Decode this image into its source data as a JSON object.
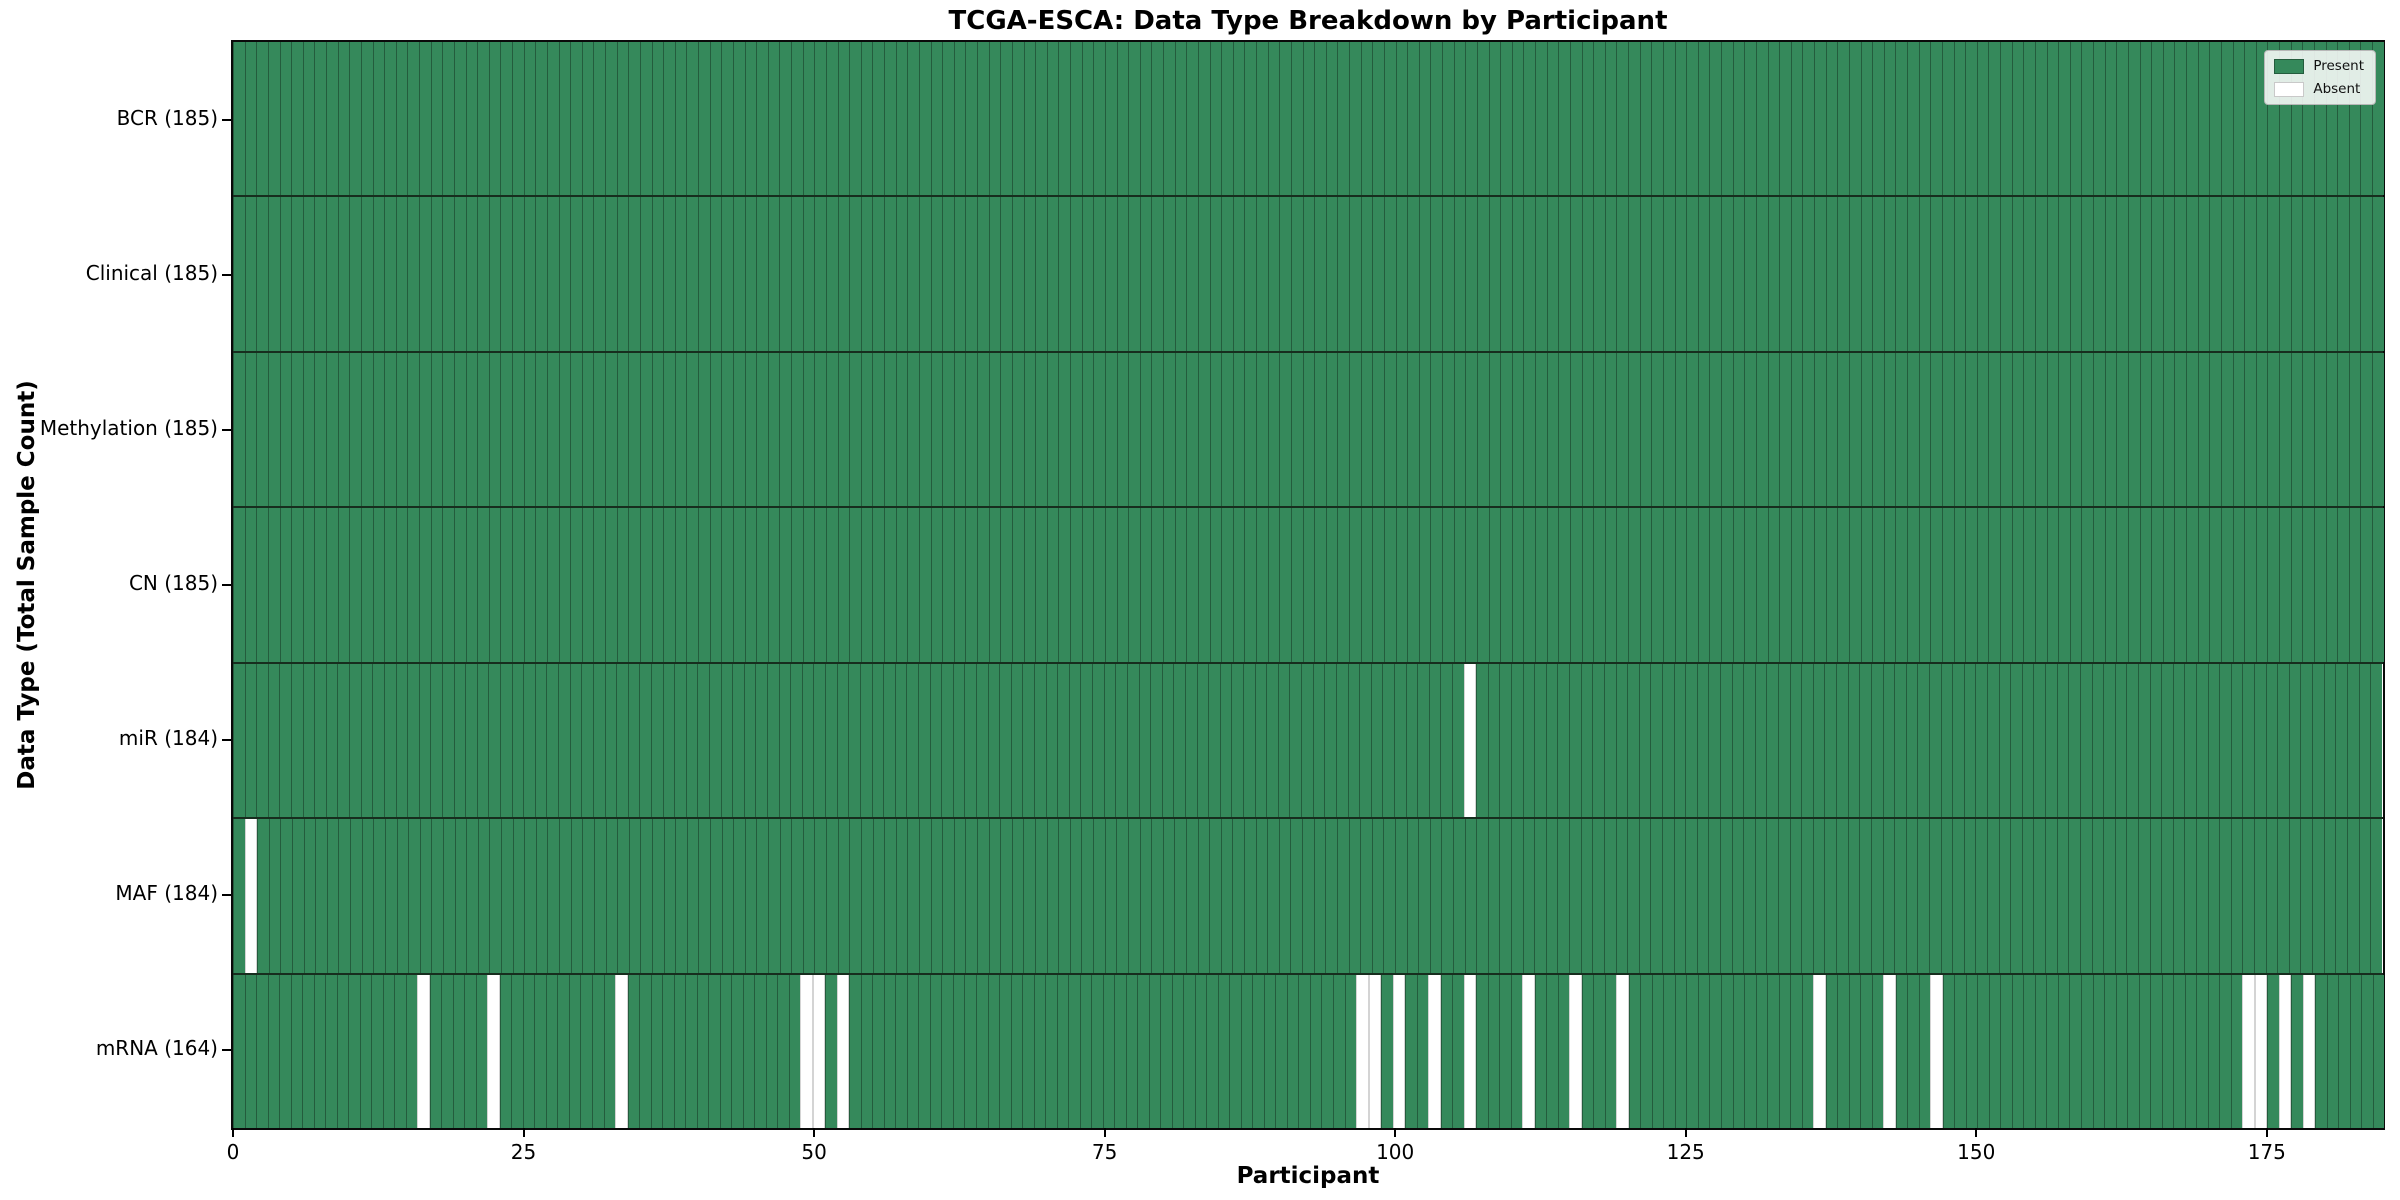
{
  "chart_data": {
    "type": "heatmap",
    "title": "TCGA-ESCA: Data Type Breakdown by Participant",
    "xlabel": "Participant",
    "ylabel": "Data Type (Total Sample Count)",
    "n_participants": 185,
    "xlim": [
      0,
      185
    ],
    "x_ticks": [
      0,
      25,
      50,
      75,
      100,
      125,
      150,
      175
    ],
    "grid": false,
    "legend": {
      "position": "upper right",
      "entries": [
        {
          "label": "Present",
          "color": "#35895B",
          "edge": "#245C3D"
        },
        {
          "label": "Absent",
          "color": "#FFFFFF",
          "edge": "#C9C9C9"
        }
      ]
    },
    "rows": [
      {
        "label": "BCR (185)",
        "data_type": "BCR",
        "total_samples": 185,
        "absent_participants": []
      },
      {
        "label": "Clinical (185)",
        "data_type": "Clinical",
        "total_samples": 185,
        "absent_participants": []
      },
      {
        "label": "Methylation (185)",
        "data_type": "Methylation",
        "total_samples": 185,
        "absent_participants": []
      },
      {
        "label": "CN (185)",
        "data_type": "CN",
        "total_samples": 185,
        "absent_participants": []
      },
      {
        "label": "miR (184)",
        "data_type": "miR",
        "total_samples": 184,
        "absent_participants": [
          106
        ]
      },
      {
        "label": "MAF (184)",
        "data_type": "MAF",
        "total_samples": 184,
        "absent_participants": [
          1
        ]
      },
      {
        "label": "mRNA (164)",
        "data_type": "mRNA",
        "total_samples": 164,
        "absent_participants": [
          16,
          22,
          33,
          49,
          50,
          52,
          97,
          98,
          100,
          103,
          106,
          111,
          115,
          119,
          136,
          142,
          146,
          173,
          174,
          176,
          178
        ]
      }
    ],
    "colors": {
      "present": "#35895B",
      "absent": "#FFFFFF",
      "bar_edge": "#245C3D",
      "row_separator": "#172D1E",
      "spine": "#0A0A0A"
    }
  }
}
